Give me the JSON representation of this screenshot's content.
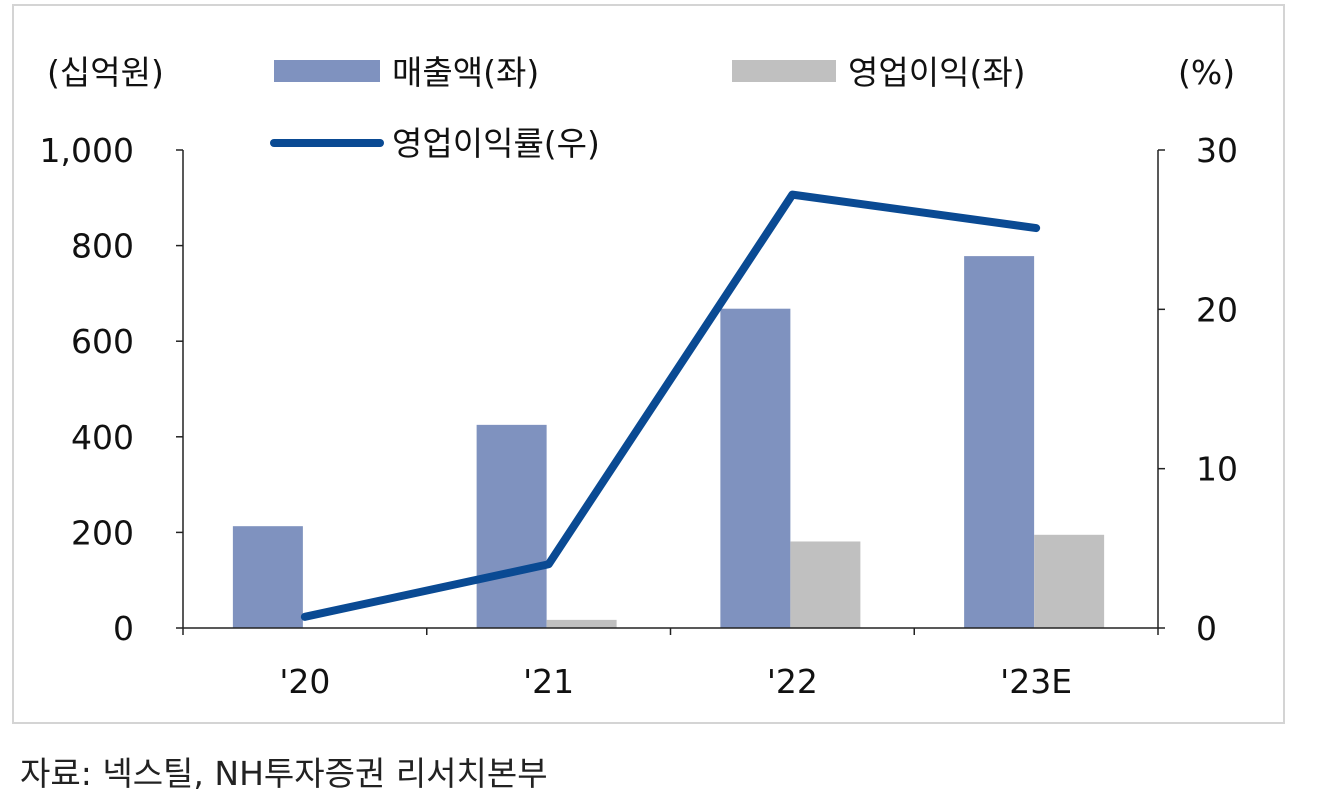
{
  "chart_data": {
    "type": "bar",
    "categories": [
      "'20",
      "'21",
      "'22",
      "'23E"
    ],
    "series": [
      {
        "name": "매출액(좌)",
        "kind": "bar",
        "axis": "left",
        "color": "#7f92bf",
        "values": [
          213,
          425,
          668,
          778
        ]
      },
      {
        "name": "영업이익(좌)",
        "kind": "bar",
        "axis": "left",
        "color": "#c0c0c0",
        "values": [
          0,
          17,
          181,
          195
        ]
      },
      {
        "name": "영업이익률(우)",
        "kind": "line",
        "axis": "right",
        "color": "#0a4a93",
        "values": [
          0.7,
          4.0,
          27.2,
          25.1
        ]
      }
    ],
    "y_left": {
      "label": "(십억원)",
      "lim": [
        0,
        1000
      ],
      "ticks": [
        0,
        200,
        400,
        600,
        800,
        1000
      ],
      "tick_labels": [
        "0",
        "200",
        "400",
        "600",
        "800",
        "1,000"
      ]
    },
    "y_right": {
      "label": "(%)",
      "lim": [
        0,
        30
      ],
      "ticks": [
        0,
        10,
        20,
        30
      ],
      "tick_labels": [
        "0",
        "10",
        "20",
        "30"
      ]
    },
    "grid": false,
    "legend_position": "top"
  },
  "source": "자료: 넥스틸, NH투자증권 리서치본부"
}
